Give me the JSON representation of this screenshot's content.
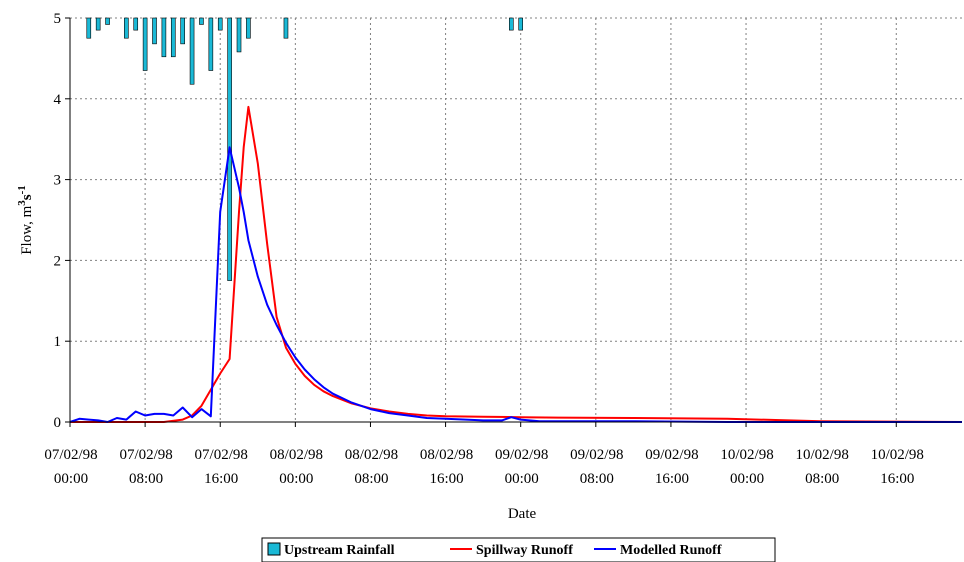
{
  "chart_data": {
    "type": "line",
    "xlabel": "Date",
    "ylabel": "Flow, m3s-1",
    "ylim": [
      0,
      5
    ],
    "y_ticks": [
      "0",
      "1",
      "2",
      "3",
      "4",
      "5"
    ],
    "x_range_hours": [
      0,
      95
    ],
    "x_tick_labels": [
      {
        "date": "07/02/98",
        "time": "00:00"
      },
      {
        "date": "07/02/98",
        "time": "08:00"
      },
      {
        "date": "07/02/98",
        "time": "16:00"
      },
      {
        "date": "08/02/98",
        "time": "00:00"
      },
      {
        "date": "08/02/98",
        "time": "08:00"
      },
      {
        "date": "08/02/98",
        "time": "16:00"
      },
      {
        "date": "09/02/98",
        "time": "00:00"
      },
      {
        "date": "09/02/98",
        "time": "08:00"
      },
      {
        "date": "09/02/98",
        "time": "16:00"
      },
      {
        "date": "10/02/98",
        "time": "00:00"
      },
      {
        "date": "10/02/98",
        "time": "08:00"
      },
      {
        "date": "10/02/98",
        "time": "16:00"
      }
    ],
    "grid": true,
    "legend_position": "bottom",
    "colors": {
      "rainfall": "#1ab9d6",
      "spillway": "#ff0000",
      "modelled": "#0000ff"
    },
    "series": [
      {
        "name": "Upstream Rainfall",
        "kind": "inverted-bar",
        "x": [
          2,
          3,
          4,
          6,
          7,
          8,
          9,
          10,
          11,
          12,
          13,
          14,
          15,
          16,
          17,
          18,
          19,
          20,
          23,
          47,
          48
        ],
        "depth": [
          0.25,
          0.15,
          0.08,
          0.25,
          0.15,
          0.65,
          0.32,
          0.48,
          0.48,
          0.32,
          0.82,
          0.08,
          0.65,
          0.15,
          3.25,
          0.42,
          0.25,
          0,
          0.25,
          0.15,
          0.15
        ]
      },
      {
        "name": "Spillway Runoff",
        "kind": "line",
        "x": [
          0,
          2,
          4,
          6,
          8,
          10,
          12,
          13,
          14,
          15,
          16,
          17,
          18,
          18.5,
          19,
          20,
          21,
          22,
          23,
          24,
          25,
          26,
          27,
          28,
          30,
          32,
          34,
          36,
          38,
          40,
          44,
          48,
          52,
          60,
          70,
          80,
          95
        ],
        "y": [
          0,
          0,
          0,
          0,
          0,
          0,
          0.03,
          0.08,
          0.2,
          0.4,
          0.6,
          0.78,
          2.6,
          3.4,
          3.9,
          3.2,
          2.2,
          1.3,
          0.92,
          0.72,
          0.57,
          0.46,
          0.38,
          0.32,
          0.23,
          0.17,
          0.13,
          0.1,
          0.08,
          0.07,
          0.065,
          0.06,
          0.055,
          0.05,
          0.04,
          0.01,
          0
        ]
      },
      {
        "name": "Modelled Runoff",
        "kind": "line",
        "x": [
          0,
          1,
          2,
          3,
          4,
          5,
          6,
          7,
          8,
          9,
          10,
          11,
          12,
          13,
          14,
          15,
          16,
          17,
          18,
          18.5,
          19,
          20,
          21,
          22,
          23,
          24,
          25,
          26,
          27,
          28,
          30,
          32,
          34,
          36,
          38,
          40,
          44,
          46,
          47,
          48,
          50,
          60,
          70,
          80,
          95
        ],
        "y": [
          0,
          0.04,
          0.03,
          0.02,
          0,
          0.05,
          0.03,
          0.13,
          0.08,
          0.1,
          0.1,
          0.08,
          0.18,
          0.06,
          0.16,
          0.07,
          2.6,
          3.4,
          2.9,
          2.6,
          2.25,
          1.8,
          1.45,
          1.2,
          0.98,
          0.8,
          0.65,
          0.53,
          0.43,
          0.35,
          0.24,
          0.16,
          0.11,
          0.08,
          0.05,
          0.04,
          0.02,
          0.02,
          0.06,
          0.03,
          0.01,
          0.01,
          0,
          0,
          0
        ]
      }
    ]
  }
}
